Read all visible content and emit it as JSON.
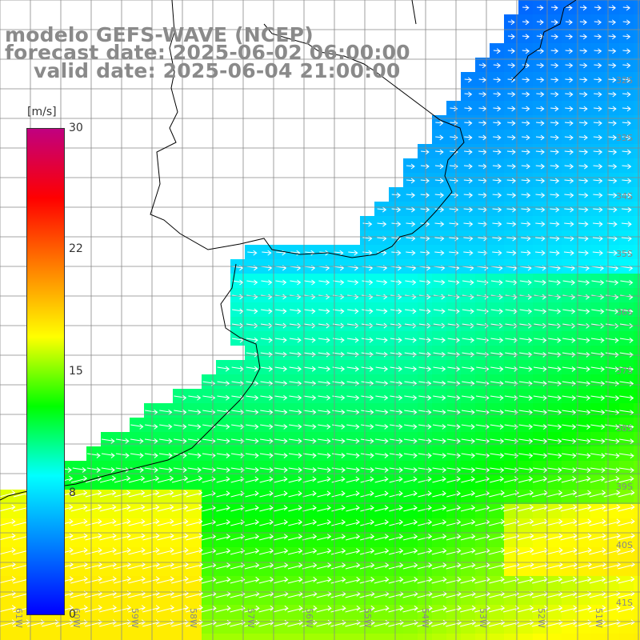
{
  "title": {
    "line1": "modelo GEFS-WAVE (NCEP)",
    "line2": "forecast date: 2025-06-02 06:00:00",
    "line3": "valid date: 2025-06-04 21:00:00"
  },
  "colorbar": {
    "unit": "[m/s]",
    "ticks": [
      "30",
      "22",
      "15",
      "8",
      "0"
    ],
    "colors": [
      "#0000ff",
      "#0080ff",
      "#00ffff",
      "#00ff00",
      "#ffff00",
      "#ff8000",
      "#ff0000",
      "#c00080"
    ]
  },
  "map": {
    "lon_labels": [
      "61W",
      "60W",
      "59W",
      "58W",
      "57W",
      "56W",
      "55W",
      "54W",
      "53W",
      "52W",
      "51W"
    ],
    "lat_labels": [
      "32S",
      "33S",
      "34S",
      "35S",
      "36S",
      "37S",
      "38S",
      "39S",
      "40S",
      "41S"
    ],
    "land_color": "#ffffff",
    "grid_color": "#888888",
    "coast_color": "#000000",
    "arrow_color": "#ffffff",
    "wind_direction": "mostly eastward (west to east), strongest in south-east"
  }
}
